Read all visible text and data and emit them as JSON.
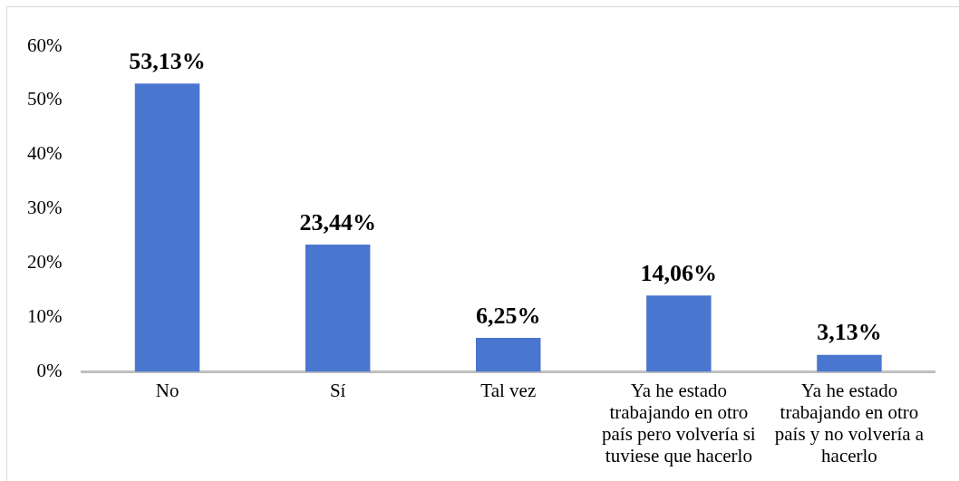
{
  "chart_data": {
    "type": "bar",
    "categories": [
      "No",
      "Sí",
      "Tal vez",
      "Ya he estado trabajando en otro país pero volvería si tuviese que hacerlo",
      "Ya he estado trabajando en otro país y no volvería a hacerlo"
    ],
    "values": [
      53.13,
      23.44,
      6.25,
      14.06,
      3.13
    ],
    "value_labels": [
      "53,13%",
      "23,44%",
      "6,25%",
      "14,06%",
      "3,13%"
    ],
    "color": "#4a76cf",
    "ylim": [
      0,
      60
    ],
    "yticks": [
      {
        "value": 0,
        "label": "0%"
      },
      {
        "value": 10,
        "label": "10%"
      },
      {
        "value": 20,
        "label": "20%"
      },
      {
        "value": 30,
        "label": "30%"
      },
      {
        "value": 40,
        "label": "40%"
      },
      {
        "value": 50,
        "label": "50%"
      },
      {
        "value": 60,
        "label": "60%"
      }
    ]
  }
}
